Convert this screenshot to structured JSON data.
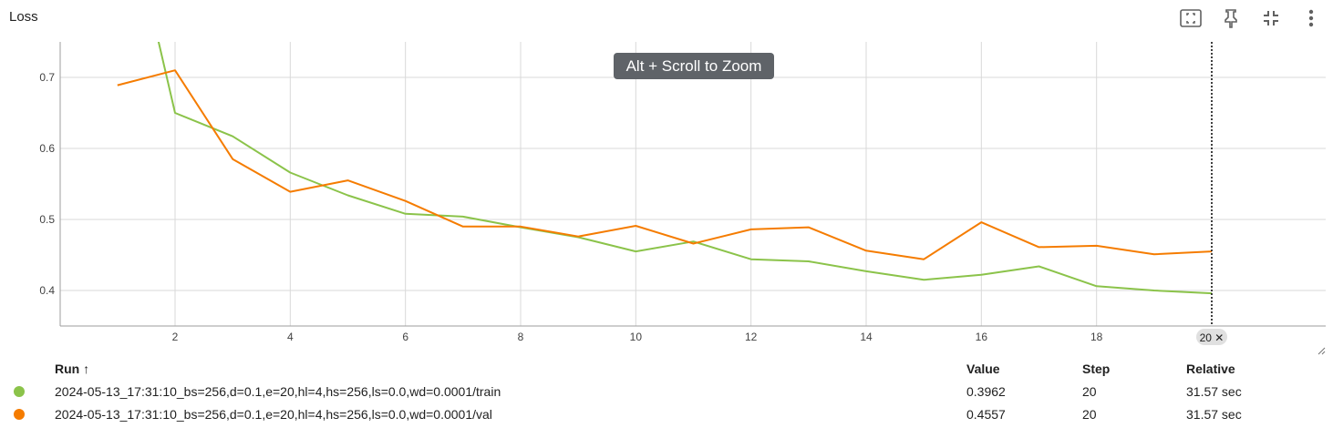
{
  "title": "Loss",
  "toolbar": {
    "icons": [
      "fit-to-data-icon",
      "pin-icon",
      "collapse-icon",
      "more-vert-icon"
    ]
  },
  "tooltip": "Alt + Scroll to Zoom",
  "colors": {
    "train": "#8bc34a",
    "val": "#f57c00",
    "grid": "#d9d9d9",
    "axis": "#9e9e9e"
  },
  "chart_data": {
    "type": "line",
    "title": "Loss",
    "xlabel": "",
    "ylabel": "",
    "xlim": [
      0,
      20.5
    ],
    "ylim": [
      0.35,
      0.75
    ],
    "x_ticks": [
      2,
      4,
      6,
      8,
      10,
      12,
      14,
      16,
      18
    ],
    "y_ticks": [
      0.4,
      0.5,
      0.6,
      0.7
    ],
    "grid": true,
    "cursor_step": 20,
    "cursor_label": "20 ✕",
    "series": [
      {
        "key": "train",
        "name": "2024-05-13_17:31:10_bs=256,d=0.1,e=20,hl=4,hs=256,ls=0.0,wd=0.0001/train",
        "color": "#8bc34a",
        "x": [
          1,
          2,
          3,
          4,
          5,
          6,
          7,
          8,
          9,
          10,
          11,
          12,
          13,
          14,
          15,
          16,
          17,
          18,
          19,
          20
        ],
        "y": [
          1.0,
          0.65,
          0.617,
          0.566,
          0.534,
          0.508,
          0.504,
          0.489,
          0.475,
          0.455,
          0.469,
          0.444,
          0.441,
          0.427,
          0.415,
          0.422,
          0.434,
          0.406,
          0.4,
          0.396
        ]
      },
      {
        "key": "val",
        "name": "2024-05-13_17:31:10_bs=256,d=0.1,e=20,hl=4,hs=256,ls=0.0,wd=0.0001/val",
        "color": "#f57c00",
        "x": [
          1,
          2,
          3,
          4,
          5,
          6,
          7,
          8,
          9,
          10,
          11,
          12,
          13,
          14,
          15,
          16,
          17,
          18,
          19,
          20
        ],
        "y": [
          0.689,
          0.71,
          0.585,
          0.539,
          0.555,
          0.526,
          0.49,
          0.49,
          0.476,
          0.491,
          0.466,
          0.486,
          0.489,
          0.456,
          0.444,
          0.496,
          0.461,
          0.463,
          0.451,
          0.455
        ]
      }
    ]
  },
  "legend": {
    "headers": {
      "run": "Run ↑",
      "value": "Value",
      "step": "Step",
      "relative": "Relative"
    },
    "rows": [
      {
        "color": "#8bc34a",
        "run": "2024-05-13_17:31:10_bs=256,d=0.1,e=20,hl=4,hs=256,ls=0.0,wd=0.0001/train",
        "value": "0.3962",
        "step": "20",
        "relative": "31.57 sec"
      },
      {
        "color": "#f57c00",
        "run": "2024-05-13_17:31:10_bs=256,d=0.1,e=20,hl=4,hs=256,ls=0.0,wd=0.0001/val",
        "value": "0.4557",
        "step": "20",
        "relative": "31.57 sec"
      }
    ]
  }
}
